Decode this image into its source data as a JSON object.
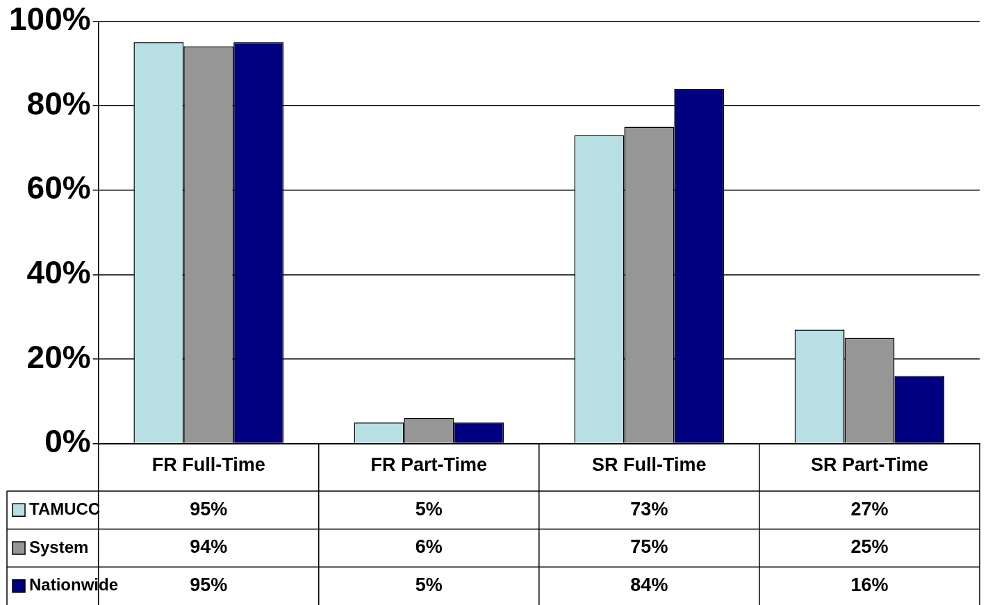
{
  "chart_data": {
    "type": "bar",
    "categories": [
      "FR Full-Time",
      "FR Part-Time",
      "SR Full-Time",
      "SR Part-Time"
    ],
    "series": [
      {
        "name": "TAMUCC",
        "color": "#b8e0e4",
        "values": [
          95,
          5,
          73,
          27
        ],
        "value_labels": [
          "95%",
          "5%",
          "73%",
          "27%"
        ]
      },
      {
        "name": "System",
        "color": "#969696",
        "values": [
          94,
          6,
          75,
          25
        ],
        "value_labels": [
          "94%",
          "6%",
          "75%",
          "25%"
        ]
      },
      {
        "name": "Nationwide",
        "color": "#000080",
        "values": [
          95,
          5,
          84,
          16
        ],
        "value_labels": [
          "95%",
          "5%",
          "84%",
          "16%"
        ]
      }
    ],
    "ylim": [
      0,
      100
    ],
    "yticks": [
      {
        "value": 0,
        "label": "0%"
      },
      {
        "value": 20,
        "label": "20%"
      },
      {
        "value": 40,
        "label": "40%"
      },
      {
        "value": 60,
        "label": "60%"
      },
      {
        "value": 80,
        "label": "80%"
      },
      {
        "value": 100,
        "label": "100%"
      }
    ],
    "grid": "y",
    "legend": "bottom left"
  }
}
